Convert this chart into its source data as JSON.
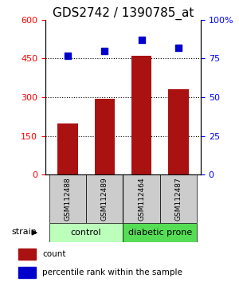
{
  "title": "GDS2742 / 1390785_at",
  "samples": [
    "GSM112488",
    "GSM112489",
    "GSM112464",
    "GSM112487"
  ],
  "counts": [
    200,
    295,
    460,
    330
  ],
  "percentiles": [
    77,
    80,
    87,
    82
  ],
  "groups": [
    {
      "label": "control",
      "color": "#bbffbb"
    },
    {
      "label": "diabetic prone",
      "color": "#55dd55"
    }
  ],
  "bar_color": "#aa1111",
  "dot_color": "#0000cc",
  "left_ylim": [
    0,
    600
  ],
  "left_yticks": [
    0,
    150,
    300,
    450,
    600
  ],
  "right_ylim": [
    0,
    100
  ],
  "right_yticks": [
    0,
    25,
    50,
    75,
    100
  ],
  "right_yticklabels": [
    "0",
    "25",
    "50",
    "75",
    "100%"
  ],
  "dotted_lines": [
    150,
    300,
    450
  ],
  "strain_label": "strain",
  "legend_count_label": "count",
  "legend_pct_label": "percentile rank within the sample",
  "title_fontsize": 11,
  "sample_label_fontsize": 6.5,
  "group_label_fontsize": 8,
  "legend_fontsize": 7.5,
  "axis_tick_fontsize": 8
}
